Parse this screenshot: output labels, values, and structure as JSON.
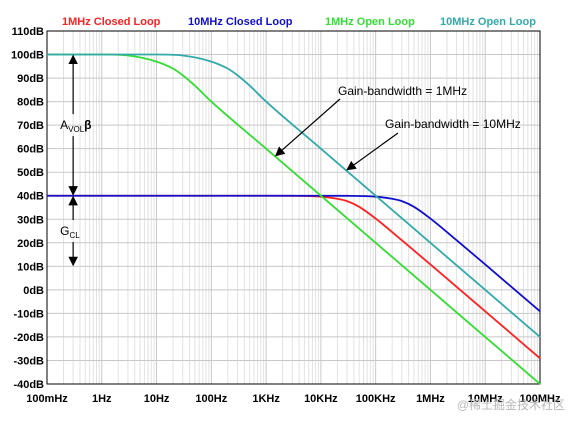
{
  "chart_data": {
    "type": "line",
    "x_scale": "log",
    "y_unit": "dB",
    "xlim": [
      "100mHz",
      "100MHz"
    ],
    "ylim": [
      -40,
      110
    ],
    "grid": true,
    "legend_placement": "top",
    "x_tick_labels": [
      "100mHz",
      "1Hz",
      "10Hz",
      "100Hz",
      "1KHz",
      "10KHz",
      "100KHz",
      "1MHz",
      "10MHz",
      "100MHz"
    ],
    "y_tick_labels": [
      "110dB",
      "100dB",
      "90dB",
      "80dB",
      "70dB",
      "60dB",
      "50dB",
      "40dB",
      "30dB",
      "20dB",
      "10dB",
      "0dB",
      "-10dB",
      "-20dB",
      "-30dB",
      "-40dB"
    ],
    "series": [
      {
        "name": "1MHz Closed Loop",
        "color": "#ff2020",
        "x": [
          0.1,
          1,
          10,
          100,
          1000,
          3000,
          10000,
          20000,
          30000,
          50000,
          100000,
          300000,
          1000000,
          10000000,
          100000000
        ],
        "y": [
          40,
          40,
          40,
          40,
          40,
          39.96,
          39.6,
          38.7,
          37.7,
          35.3,
          30.3,
          21.1,
          10.8,
          -9.1,
          -29.1
        ]
      },
      {
        "name": "10MHz Closed Loop",
        "color": "#1010cc",
        "x": [
          0.1,
          1,
          10,
          100,
          1000,
          10000,
          30000,
          100000,
          200000,
          300000,
          500000,
          1000000,
          3000000,
          10000000,
          100000000
        ],
        "y": [
          40,
          40,
          40,
          40,
          40,
          40,
          39.96,
          39.6,
          38.7,
          37.7,
          35.3,
          30.3,
          21.1,
          10.8,
          -9.1
        ]
      },
      {
        "name": "1MHz Open Loop",
        "color": "#33dd33",
        "x": [
          0.1,
          1,
          3,
          10,
          20,
          30,
          50,
          100,
          1000,
          10000,
          100000,
          1000000,
          10000000,
          100000000
        ],
        "y": [
          100,
          100,
          99.6,
          97,
          94,
          91.2,
          86.8,
          80,
          60,
          40,
          20,
          0,
          -20,
          -40
        ]
      },
      {
        "name": "10MHz Open Loop",
        "color": "#33aaaa",
        "x": [
          0.1,
          1,
          10,
          30,
          100,
          200,
          300,
          500,
          1000,
          10000,
          100000,
          1000000,
          10000000,
          100000000
        ],
        "y": [
          100,
          100,
          100,
          99.6,
          97,
          94,
          91.2,
          86.8,
          80,
          60,
          40,
          20,
          0,
          -20
        ]
      }
    ],
    "annotations": [
      {
        "text": "Gain-bandwidth = 1MHz",
        "x": 1500,
        "y": 57
      },
      {
        "text": "Gain-bandwidth = 10MHz",
        "x": 30000,
        "y": 51
      }
    ],
    "range_markers": [
      {
        "label_main": "A",
        "label_sub": "VOL",
        "label_suffix": "β",
        "from": 100,
        "to": 40,
        "x": 0.3
      },
      {
        "label_main": "G",
        "label_sub": "CL",
        "label_suffix": "",
        "from": 40,
        "to": 10,
        "x": 0.3
      }
    ]
  },
  "watermark": "@稀土掘金技术社区"
}
